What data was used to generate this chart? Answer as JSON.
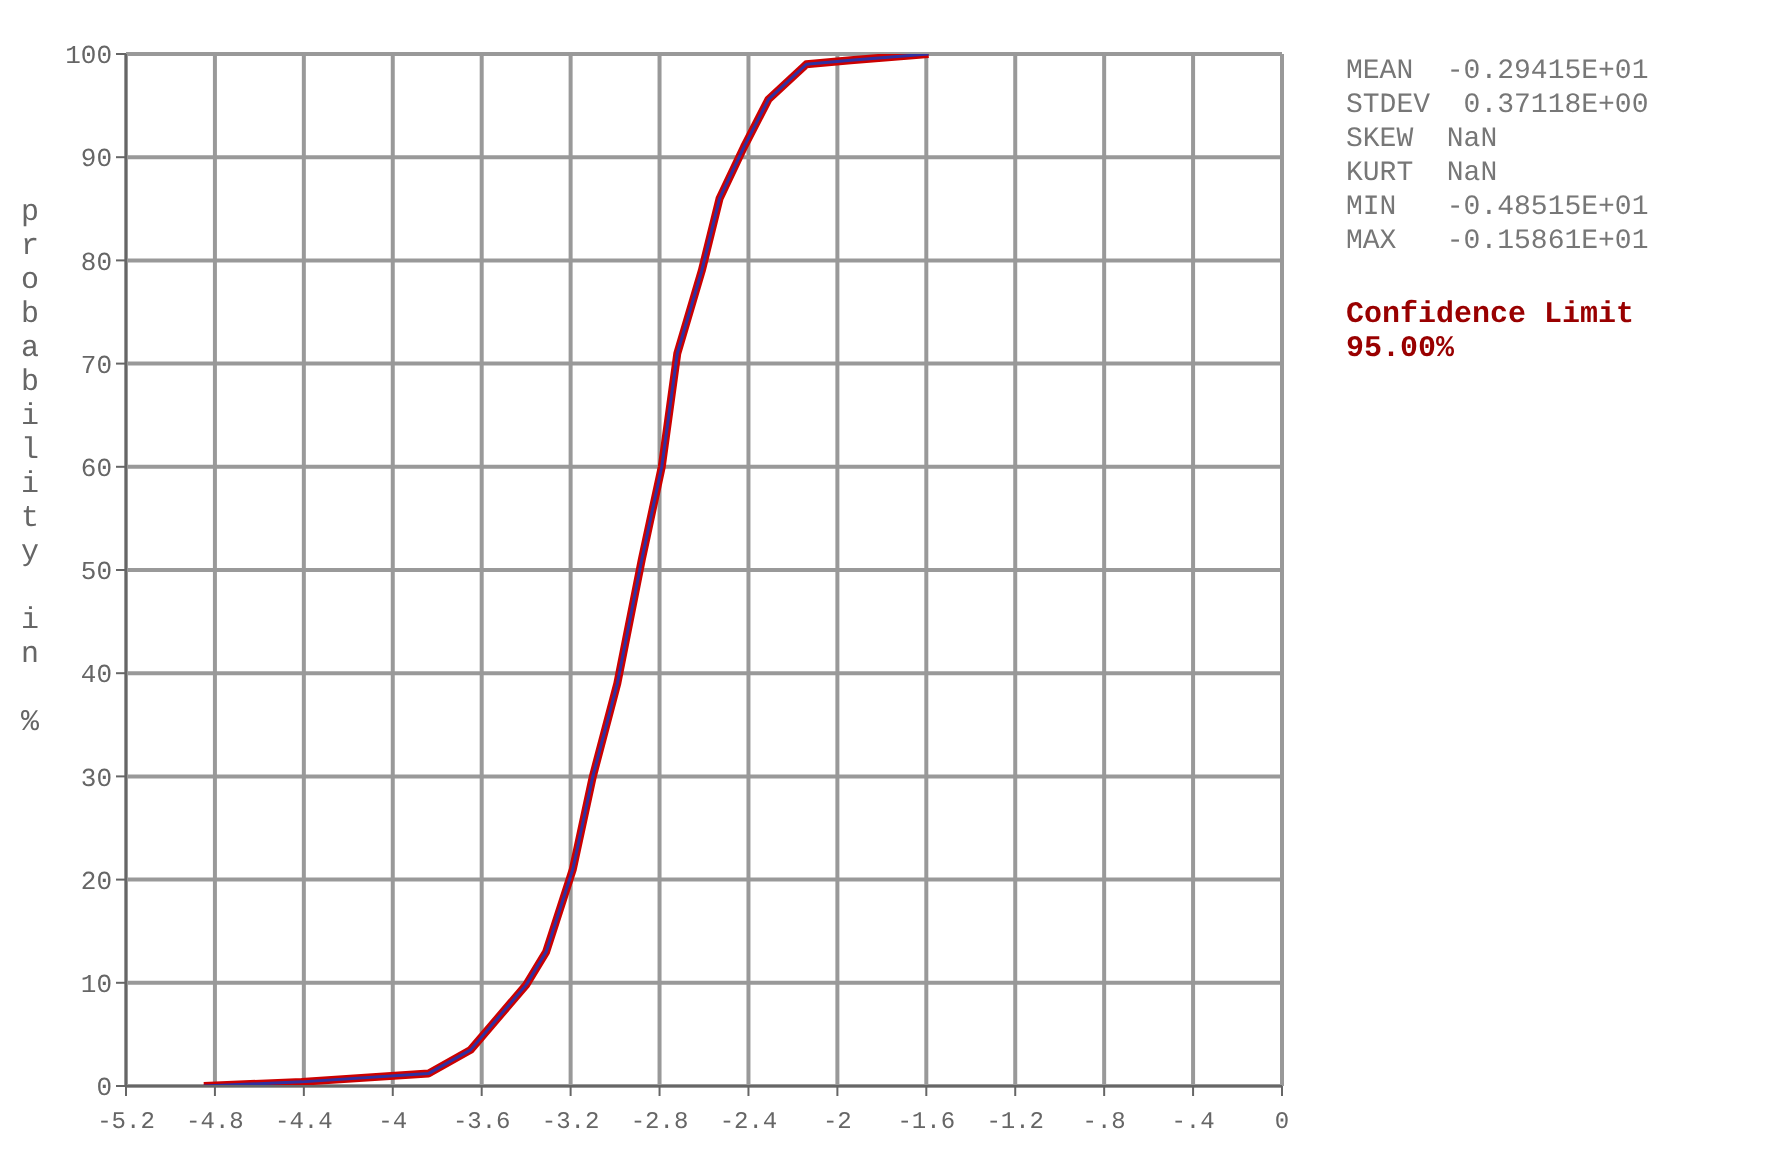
{
  "chart_data": {
    "type": "line",
    "ylabel": "probability in %",
    "x": [
      -4.85,
      -4.41,
      -3.84,
      -3.65,
      -3.4,
      -3.31,
      -3.19,
      -3.1,
      -2.99,
      -2.88,
      -2.79,
      -2.72,
      -2.61,
      -2.53,
      -2.42,
      -2.31,
      -2.14,
      -1.94,
      -1.59
    ],
    "series": [
      {
        "color": "#cc0000",
        "values": [
          0,
          0.4,
          1.2,
          3.5,
          9.8,
          13,
          21,
          30,
          39,
          51,
          60,
          71,
          79,
          86,
          91,
          95.6,
          99,
          99.4,
          100
        ]
      },
      {
        "color": "#3030a0",
        "values": [
          0,
          0.4,
          1.2,
          3.5,
          9.8,
          13,
          21,
          30,
          39,
          51,
          60,
          71,
          79,
          86,
          91,
          95.6,
          99,
          99.4,
          100
        ]
      }
    ],
    "xlim": [
      -5.2,
      0
    ],
    "xticks": [
      -5.2,
      -4.8,
      -4.4,
      -4,
      -3.6,
      -3.2,
      -2.8,
      -2.4,
      -2,
      -1.6,
      -1.2,
      {
        "value": -0.8,
        "label": "-.8"
      },
      {
        "value": -0.4,
        "label": "-.4"
      },
      0
    ],
    "ylim": [
      0,
      100
    ],
    "yticks": [
      0,
      10,
      20,
      30,
      40,
      50,
      60,
      70,
      80,
      90,
      100
    ],
    "grid": true,
    "line_style": "solid",
    "marker": "none",
    "annotations": [
      "MEAN  -0.29415E+01",
      "STDEV  0.37118E+00",
      "SKEW  NaN",
      "KURT  NaN",
      "MIN   -0.48515E+01",
      "MAX   -0.15861E+01",
      "Confidence Limit",
      "95.00%"
    ]
  }
}
